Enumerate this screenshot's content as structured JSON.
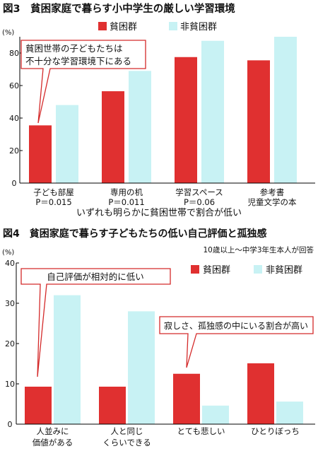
{
  "colors": {
    "poor": "#e03030",
    "nonpoor": "#c8f2f4",
    "callout": "#d42a2a"
  },
  "charts": [
    {
      "id": "fig3",
      "title": "図3　貧困家庭で暮らす小中学生の厳しい学習環境",
      "unit": "(%)",
      "legend": [
        "貧困群",
        "非貧困群"
      ],
      "callout": [
        "貧困世帯の子どもたちは",
        "不十分な学習環境下にある"
      ],
      "footer": "いずれも明らかに貧困世帯で割合が低い",
      "note": ""
    },
    {
      "id": "fig4",
      "title": "図4　貧困家庭で暮らす子どもたちの低い自己評価と孤独感",
      "unit": "(%)",
      "legend": [
        "貧困群",
        "非貧困群"
      ],
      "callout": [
        "自己評価が相対的に低い"
      ],
      "callout2": [
        "寂しさ、孤独感の中にいる割合が高い"
      ],
      "footer": "",
      "note": "10歳以上～中学3年生本人が回答"
    }
  ],
  "chart_data": [
    {
      "type": "bar",
      "title": "図3　貧困家庭で暮らす小中学生の厳しい学習環境",
      "ylabel": "(%)",
      "ylim": [
        0,
        90
      ],
      "yticks": [
        0,
        20,
        40,
        60,
        80
      ],
      "grid": false,
      "legend_position": "top-right",
      "categories": [
        [
          "子ども部屋",
          "P＝0.015"
        ],
        [
          "専用の机",
          "P＝0.011"
        ],
        [
          "学習スペース",
          "P＝0.06"
        ],
        [
          "参考書",
          "児童文学の本"
        ]
      ],
      "series": [
        {
          "name": "貧困群",
          "values": [
            35.5,
            56.5,
            77.5,
            75.5
          ]
        },
        {
          "name": "非貧困群",
          "values": [
            48,
            69,
            87.5,
            90
          ]
        }
      ]
    },
    {
      "type": "bar",
      "title": "図4　貧困家庭で暮らす子どもたちの低い自己評価と孤独感",
      "ylabel": "(%)",
      "ylim": [
        0,
        40
      ],
      "yticks": [
        0,
        10,
        20,
        30,
        40
      ],
      "grid": false,
      "legend_position": "top-right",
      "categories": [
        [
          "人並みに",
          "価値がある"
        ],
        [
          "人と同じ",
          "くらいできる"
        ],
        [
          "とても悲しい"
        ],
        [
          "ひとりぼっち"
        ]
      ],
      "series": [
        {
          "name": "貧困群",
          "values": [
            9.3,
            9.3,
            12.5,
            15.1
          ]
        },
        {
          "name": "非貧困群",
          "values": [
            32,
            28,
            4.6,
            5.6
          ]
        }
      ]
    }
  ]
}
